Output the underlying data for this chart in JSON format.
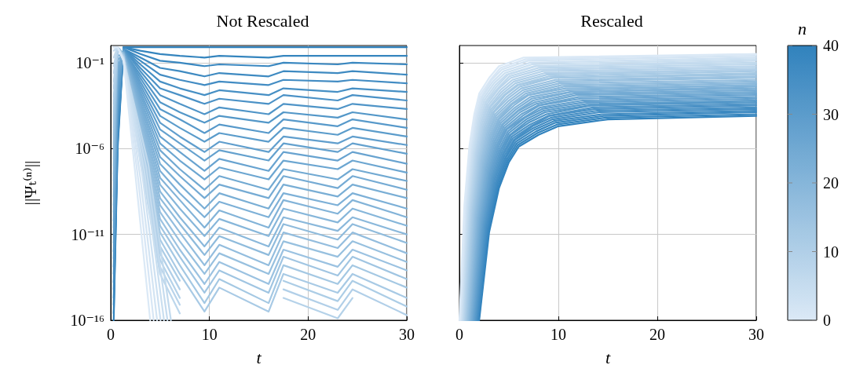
{
  "chart_data": [
    {
      "type": "line",
      "title": "Not Rescaled",
      "xlabel": "t",
      "ylabel": "||Ψₜ⁽ⁿ⁾||",
      "log": true,
      "grid": true,
      "marker": "none",
      "xlim": [
        0,
        30
      ],
      "xticks": [
        0,
        10,
        20,
        30
      ],
      "ylim": [
        1e-16,
        1
      ],
      "yticks": [
        {
          "value": 1e-16,
          "label": "10⁻¹⁶"
        },
        {
          "value": 1e-11,
          "label": "10⁻¹¹"
        },
        {
          "value": 1e-06,
          "label": "10⁻⁶"
        },
        {
          "value": 0.1,
          "label": "10⁻¹"
        }
      ],
      "x": [
        0.3,
        0.7,
        1.3,
        3,
        5,
        7,
        9.5,
        11,
        16,
        17.5,
        23,
        24.5,
        30
      ],
      "series": [
        {
          "color": "#dbe9f6",
          "x": [
            0.3,
            0.7,
            1.3,
            2.6,
            4
          ],
          "values": [
            0.8,
            0.8,
            0.13,
            8e-09,
            1e-16
          ]
        },
        {
          "color": "#d7e6f5",
          "x": [
            0.3,
            0.7,
            1.3,
            2.8,
            4.35
          ],
          "values": [
            0.8,
            0.8,
            0.13,
            1.3e-08,
            1e-16
          ]
        },
        {
          "color": "#d3e4f3",
          "x": [
            0.3,
            0.7,
            1.3,
            3,
            4.7
          ],
          "values": [
            0.8,
            0.8,
            0.13,
            2e-08,
            1e-16
          ]
        },
        {
          "color": "#cee1f2",
          "x": [
            0.3,
            0.7,
            1.3,
            3.2,
            5.05
          ],
          "values": [
            0.8,
            0.8,
            0.16,
            3.2e-08,
            1e-16
          ]
        },
        {
          "color": "#cadff0",
          "x": [
            0.3,
            0.7,
            1.3,
            3.4,
            5.4
          ],
          "values": [
            0.8,
            0.8,
            0.16,
            5e-08,
            1e-16
          ]
        },
        {
          "color": "#c6dcef",
          "x": [
            0.3,
            0.7,
            1.3,
            3.6,
            5.75
          ],
          "values": [
            0.5,
            0.8,
            0.16,
            8e-08,
            1e-16
          ]
        },
        {
          "color": "#c2daed",
          "x": [
            0.3,
            0.7,
            1.3,
            3.8,
            6.1
          ],
          "values": [
            0.2,
            0.8,
            0.16,
            1.3e-07,
            1e-16
          ]
        },
        {
          "color": "#bdd7ec",
          "values": [
            0.063,
            0.8,
            0.16,
            2e-07,
            5e-14,
            2.5e-16,
            null,
            null,
            null,
            null,
            null,
            null,
            null
          ]
        },
        {
          "color": "#b9d4eb",
          "values": [
            0.025,
            0.8,
            0.2,
            3.2e-07,
            1.3e-13,
            8e-16,
            null,
            null,
            null,
            null,
            null,
            null,
            null
          ]
        },
        {
          "color": "#b5d2e9",
          "values": [
            0.008,
            0.8,
            0.2,
            5e-07,
            3.2e-13,
            2e-15,
            null,
            null,
            null,
            2e-15,
            1.3e-16,
            2e-15,
            null
          ]
        },
        {
          "color": "#b1cfe8",
          "values": [
            0.0032,
            0.8,
            0.2,
            8e-07,
            8e-13,
            6.3e-15,
            null,
            null,
            null,
            6.3e-15,
            4e-16,
            6.3e-15,
            2e-16
          ]
        },
        {
          "color": "#accde6",
          "values": [
            0.001,
            0.8,
            0.2,
            1.3e-06,
            2e-12,
            2e-14,
            null,
            null,
            null,
            2e-14,
            1.3e-15,
            2e-14,
            6.3e-16
          ]
        },
        {
          "color": "#a8cae5",
          "values": [
            0.0004,
            0.8,
            0.2,
            2e-06,
            5e-12,
            5e-14,
            3.2e-16,
            8e-15,
            3.2e-16,
            5e-14,
            4e-15,
            5e-14,
            2e-15
          ]
        },
        {
          "color": "#a4c8e3",
          "values": [
            0.00013,
            0.8,
            0.25,
            3.2e-06,
            1.3e-11,
            1.6e-13,
            1e-15,
            2.5e-14,
            1e-15,
            1.6e-13,
            1.3e-14,
            1.6e-13,
            8e-15
          ]
        },
        {
          "color": "#a0c5e2",
          "values": [
            5e-05,
            0.8,
            0.25,
            5e-06,
            3.2e-11,
            5e-13,
            4e-15,
            8e-14,
            4e-15,
            5e-13,
            4e-14,
            5e-13,
            2.5e-14
          ]
        },
        {
          "color": "#9bc2e1",
          "values": [
            1.6e-05,
            0.8,
            0.25,
            8e-06,
            8e-11,
            1.3e-12,
            1.3e-14,
            2.5e-13,
            1.3e-14,
            1.3e-12,
            1.3e-13,
            1.3e-12,
            8e-14
          ]
        },
        {
          "color": "#97c0df",
          "values": [
            6.3e-06,
            0.8,
            0.25,
            1.3e-05,
            2e-10,
            4e-12,
            5e-14,
            8e-13,
            5e-14,
            4e-12,
            5e-13,
            4e-12,
            2.5e-13
          ]
        },
        {
          "color": "#93bdde",
          "values": [
            2e-06,
            0.8,
            0.25,
            2e-05,
            5e-10,
            1.3e-11,
            1.6e-13,
            2.5e-12,
            1.6e-13,
            1.3e-11,
            1.6e-12,
            1.3e-11,
            8e-13
          ]
        },
        {
          "color": "#8fbbdc",
          "values": [
            8e-07,
            0.8,
            0.32,
            3.2e-05,
            1.3e-09,
            4e-11,
            6.3e-13,
            8e-12,
            6.3e-13,
            4e-11,
            5e-12,
            4e-11,
            3.2e-12
          ]
        },
        {
          "color": "#8ab8db",
          "values": [
            2.5e-07,
            0.8,
            0.32,
            5e-05,
            3.2e-09,
            1e-10,
            2e-12,
            2.5e-11,
            2e-12,
            1e-10,
            1.6e-11,
            1e-10,
            1e-11
          ]
        },
        {
          "color": "#86b6da",
          "values": [
            1e-07,
            0.8,
            0.32,
            8e-05,
            8e-09,
            3.2e-10,
            8e-12,
            8e-11,
            8e-12,
            3.2e-10,
            5e-11,
            3.2e-10,
            3.2e-11
          ]
        },
        {
          "color": "#82b3d8",
          "values": [
            3.2e-08,
            0.5,
            0.32,
            0.00013,
            2e-08,
            1e-09,
            2.5e-11,
            2.5e-10,
            2.5e-11,
            1e-09,
            1.6e-10,
            1e-09,
            1e-10
          ]
        },
        {
          "color": "#7db0d7",
          "values": [
            1.3e-08,
            0.25,
            0.32,
            0.0002,
            5e-08,
            2.5e-09,
            1e-10,
            8e-10,
            1e-10,
            2.5e-09,
            5e-10,
            2.5e-09,
            3.2e-10
          ]
        },
        {
          "color": "#79aed5",
          "values": [
            4e-09,
            0.13,
            0.4,
            0.00032,
            1.3e-07,
            8e-09,
            3.2e-10,
            2.5e-09,
            3.2e-10,
            8e-09,
            1.6e-09,
            8e-09,
            1.3e-09
          ]
        },
        {
          "color": "#75abd4",
          "values": [
            1.6e-09,
            0.063,
            0.4,
            0.0005,
            3.2e-07,
            2.5e-08,
            1.3e-09,
            8e-09,
            1.3e-09,
            2.5e-08,
            5e-09,
            2.5e-08,
            4e-09
          ]
        },
        {
          "color": "#71a9d2",
          "values": [
            5e-10,
            0.032,
            0.4,
            0.0008,
            8e-07,
            6.3e-08,
            4e-09,
            2.5e-08,
            4e-09,
            6.3e-08,
            1.6e-08,
            6.3e-08,
            1.3e-08
          ]
        },
        {
          "color": "#6ca6d1",
          "values": [
            2e-10,
            0.016,
            0.4,
            0.0013,
            2e-06,
            2e-07,
            1.6e-08,
            8e-08,
            1.6e-08,
            2e-07,
            6.3e-08,
            2e-07,
            4e-08
          ]
        },
        {
          "color": "#68a3d0",
          "values": [
            6.3e-11,
            0.008,
            0.4,
            0.002,
            5e-06,
            6.3e-07,
            5e-08,
            2.5e-07,
            5e-08,
            6.3e-07,
            2e-07,
            6.3e-07,
            1.3e-07
          ]
        },
        {
          "color": "#64a1ce",
          "values": [
            2.5e-11,
            0.004,
            0.5,
            0.0032,
            1.3e-05,
            2e-06,
            2e-07,
            8e-07,
            2e-07,
            2e-06,
            6.3e-07,
            2e-06,
            5e-07
          ]
        },
        {
          "color": "#609ecd",
          "values": [
            8e-12,
            0.002,
            0.5,
            0.005,
            3.2e-05,
            5e-06,
            6.3e-07,
            2.5e-06,
            6.3e-07,
            5e-06,
            2e-06,
            5e-06,
            1.6e-06
          ]
        },
        {
          "color": "#5b9ccb",
          "values": [
            3.2e-12,
            0.001,
            0.5,
            0.008,
            8e-05,
            1.6e-05,
            2.5e-06,
            8e-06,
            2.5e-06,
            1.6e-05,
            6.3e-06,
            1.6e-05,
            5e-06
          ]
        },
        {
          "color": "#5799ca",
          "values": [
            1e-12,
            0.0005,
            0.5,
            0.013,
            0.0002,
            5e-05,
            8e-06,
            2.5e-05,
            8e-06,
            5e-05,
            2e-05,
            5e-05,
            1.6e-05
          ]
        },
        {
          "color": "#5397c8",
          "values": [
            4e-13,
            0.00025,
            0.5,
            0.02,
            0.0005,
            0.00013,
            3.2e-05,
            8e-05,
            3.2e-05,
            0.00013,
            6.3e-05,
            0.00013,
            5e-05
          ]
        },
        {
          "color": "#4f94c7",
          "values": [
            1.3e-13,
            0.00013,
            0.63,
            0.032,
            0.0013,
            0.0004,
            0.0001,
            0.00025,
            0.0001,
            0.0004,
            0.0002,
            0.0004,
            0.0002
          ]
        },
        {
          "color": "#4a91c6",
          "values": [
            5e-14,
            6.3e-05,
            0.63,
            0.05,
            0.0032,
            0.0013,
            0.0004,
            0.0008,
            0.0004,
            0.0013,
            0.00063,
            0.0013,
            0.00063
          ]
        },
        {
          "color": "#468fc4",
          "values": [
            1.6e-14,
            3.2e-05,
            0.63,
            0.08,
            0.008,
            0.0032,
            0.0013,
            0.0025,
            0.0013,
            0.0032,
            0.002,
            0.0032,
            0.002
          ]
        },
        {
          "color": "#428cc3",
          "values": [
            6.3e-15,
            1.6e-05,
            0.63,
            0.13,
            0.02,
            0.01,
            0.005,
            0.008,
            0.005,
            0.01,
            0.008,
            0.01,
            0.0063
          ]
        },
        {
          "color": "#3e8ac1",
          "values": [
            2e-15,
            8e-06,
            0.63,
            0.2,
            0.05,
            0.032,
            0.016,
            0.025,
            0.016,
            0.032,
            0.025,
            0.032,
            0.02
          ]
        },
        {
          "color": "#3987c0",
          "values": [
            8e-16,
            4e-06,
            0.8,
            0.32,
            0.13,
            0.1,
            0.063,
            0.08,
            0.063,
            0.1,
            0.08,
            0.1,
            0.08
          ]
        },
        {
          "color": "#3585be",
          "values": [
            2.5e-16,
            2e-06,
            0.8,
            0.5,
            0.32,
            0.25,
            0.2,
            0.25,
            0.2,
            0.25,
            0.25,
            0.25,
            0.25
          ]
        },
        {
          "color": "#3182bd",
          "values": [
            1e-16,
            1e-06,
            0.8,
            0.8,
            0.8,
            0.8,
            0.8,
            0.8,
            0.8,
            0.8,
            0.8,
            0.8,
            0.8
          ]
        }
      ]
    },
    {
      "type": "line",
      "title": "Rescaled",
      "xlabel": "t",
      "log": true,
      "grid": true,
      "marker": "none",
      "tick_labels": "x",
      "xlim": [
        0,
        30
      ],
      "xticks": [
        0,
        10,
        20,
        30
      ],
      "ylim": [
        1e-16,
        1
      ],
      "yticks": [
        {
          "value": 1e-16,
          "label": null
        },
        {
          "value": 1e-11,
          "label": null
        },
        {
          "value": 1e-06,
          "label": null
        },
        {
          "value": 0.1,
          "label": null
        }
      ],
      "clabel": "n",
      "clim": [
        0,
        40
      ],
      "cticks": [
        0,
        10,
        20,
        30,
        40
      ],
      "series": [
        {
          "color": "#dbe9f6",
          "x": [
            0,
            0.5,
            1,
            1.5,
            2,
            3,
            4,
            6.5,
            30
          ],
          "values": [
            1e-16,
            5e-10,
            1.3e-06,
            0.0001,
            0.0016,
            0.013,
            0.063,
            0.2,
            0.32
          ]
        },
        {
          "color": "#d7e6f5",
          "x": [
            0.05,
            0.56,
            1.08,
            1.59,
            2.1,
            3.13,
            4.15,
            6.71,
            30
          ],
          "values": [
            1e-16,
            5e-10,
            1e-06,
            0.0001,
            0.0013,
            0.01,
            0.05,
            0.16,
            0.32
          ]
        },
        {
          "color": "#d3e4f3",
          "x": [
            0.1,
            0.63,
            1.15,
            1.68,
            2.2,
            3.25,
            4.3,
            6.93,
            30
          ],
          "values": [
            1e-16,
            4e-10,
            1e-06,
            8e-05,
            0.001,
            0.01,
            0.04,
            0.13,
            0.25
          ]
        },
        {
          "color": "#cee1f2",
          "x": [
            0.15,
            0.69,
            1.23,
            1.76,
            2.3,
            3.38,
            4.45,
            7.14,
            30
          ],
          "values": [
            1e-16,
            4e-10,
            8e-07,
            6.3e-05,
            0.001,
            0.008,
            0.032,
            0.1,
            0.2
          ]
        },
        {
          "color": "#cadff0",
          "x": [
            0.2,
            0.75,
            1.3,
            1.85,
            2.4,
            3.5,
            4.6,
            7.35,
            30
          ],
          "values": [
            1e-16,
            3.2e-10,
            6.3e-07,
            6.3e-05,
            0.0008,
            0.0063,
            0.025,
            0.08,
            0.16
          ]
        },
        {
          "color": "#c6dcef",
          "x": [
            0.25,
            0.81,
            1.38,
            1.94,
            2.5,
            3.63,
            4.75,
            7.56,
            30
          ],
          "values": [
            1e-16,
            3.2e-10,
            6.3e-07,
            5e-05,
            0.00063,
            0.005,
            0.02,
            0.063,
            0.13
          ]
        },
        {
          "color": "#c2daed",
          "x": [
            0.3,
            0.88,
            1.45,
            2.03,
            2.6,
            3.75,
            4.9,
            7.78,
            30
          ],
          "values": [
            1e-16,
            3.2e-10,
            5e-07,
            4e-05,
            0.0005,
            0.004,
            0.02,
            0.063,
            0.1
          ]
        },
        {
          "color": "#bdd7ec",
          "x": [
            0.35,
            0.94,
            1.53,
            2.11,
            2.7,
            3.88,
            5.05,
            7.99,
            30
          ],
          "values": [
            1e-16,
            2.5e-10,
            5e-07,
            4e-05,
            0.0005,
            0.0032,
            0.016,
            0.05,
            0.08
          ]
        },
        {
          "color": "#b9d4eb",
          "x": [
            0.4,
            1,
            1.6,
            2.2,
            2.8,
            4,
            5.2,
            8.2,
            30
          ],
          "values": [
            1e-16,
            2.5e-10,
            4e-07,
            3.2e-05,
            0.0004,
            0.0032,
            0.013,
            0.04,
            0.063
          ]
        },
        {
          "color": "#b5d2e9",
          "x": [
            0.45,
            1.06,
            1.68,
            2.29,
            2.9,
            4.13,
            5.35,
            8.41,
            30
          ],
          "values": [
            1e-16,
            2e-10,
            4e-07,
            2.5e-05,
            0.00032,
            0.0025,
            0.01,
            0.032,
            0.05
          ]
        },
        {
          "color": "#b1cfe8",
          "x": [
            0.5,
            1.13,
            1.75,
            2.38,
            3,
            4.25,
            5.5,
            8.63,
            30
          ],
          "values": [
            1e-16,
            2e-10,
            3.2e-07,
            2e-05,
            0.00025,
            0.002,
            0.008,
            0.025,
            0.04
          ]
        },
        {
          "color": "#accde6",
          "x": [
            0.55,
            1.19,
            1.83,
            2.46,
            3.1,
            4.38,
            5.65,
            8.84,
            30
          ],
          "values": [
            1e-16,
            2e-10,
            2.5e-07,
            2e-05,
            0.00025,
            0.0016,
            0.0063,
            0.02,
            0.04
          ]
        },
        {
          "color": "#a8cae5",
          "x": [
            0.6,
            1.25,
            1.9,
            2.55,
            3.2,
            4.5,
            5.8,
            9.05,
            30
          ],
          "values": [
            1e-16,
            1.6e-10,
            2.5e-07,
            1.6e-05,
            0.0002,
            0.0013,
            0.005,
            0.016,
            0.032
          ]
        },
        {
          "color": "#a4c8e3",
          "x": [
            0.65,
            1.31,
            1.98,
            2.64,
            3.3,
            4.63,
            5.95,
            9.26,
            30
          ],
          "values": [
            1e-16,
            1.6e-10,
            2e-07,
            1.3e-05,
            0.00016,
            0.0013,
            0.005,
            0.013,
            0.025
          ]
        },
        {
          "color": "#a0c5e2",
          "x": [
            0.7,
            1.38,
            2.05,
            2.73,
            3.4,
            4.75,
            6.1,
            9.48,
            30
          ],
          "values": [
            1e-16,
            1.3e-10,
            2e-07,
            1.3e-05,
            0.00013,
            0.001,
            0.004,
            0.013,
            0.02
          ]
        },
        {
          "color": "#9bc2e1",
          "x": [
            0.75,
            1.44,
            2.13,
            2.81,
            3.5,
            4.88,
            6.25,
            9.69,
            30
          ],
          "values": [
            1e-16,
            1.3e-10,
            1.6e-07,
            1e-05,
            0.00013,
            0.0008,
            0.0032,
            0.01,
            0.016
          ]
        },
        {
          "color": "#97c0df",
          "x": [
            0.8,
            1.5,
            2.2,
            2.9,
            3.6,
            5,
            6.4,
            9.9,
            30
          ],
          "values": [
            1e-16,
            1.3e-10,
            1.3e-07,
            8e-06,
            0.0001,
            0.00063,
            0.0025,
            0.008,
            0.013
          ]
        },
        {
          "color": "#93bdde",
          "x": [
            0.85,
            1.56,
            2.28,
            2.99,
            3.7,
            5.13,
            6.55,
            10.11,
            30
          ],
          "values": [
            1e-16,
            1e-10,
            1.3e-07,
            8e-06,
            8e-05,
            0.0005,
            0.002,
            0.0063,
            0.01
          ]
        },
        {
          "color": "#8fbbdc",
          "x": [
            0.9,
            1.63,
            2.35,
            3.08,
            3.8,
            5.25,
            6.7,
            10.33,
            30
          ],
          "values": [
            1e-16,
            1e-10,
            1e-07,
            6.3e-06,
            6.3e-05,
            0.0004,
            0.0016,
            0.005,
            0.008
          ]
        },
        {
          "color": "#8ab8db",
          "x": [
            0.95,
            1.69,
            2.43,
            3.16,
            3.9,
            5.38,
            6.85,
            10.54,
            30
          ],
          "values": [
            1e-16,
            1e-10,
            1e-07,
            5e-06,
            5e-05,
            0.0004,
            0.0013,
            0.004,
            0.0063
          ]
        },
        {
          "color": "#86b6da",
          "x": [
            1,
            1.75,
            2.5,
            3.25,
            4,
            5.5,
            7,
            10.75,
            30
          ],
          "values": [
            1e-16,
            8e-11,
            8e-08,
            4e-06,
            5e-05,
            0.00032,
            0.0013,
            0.0032,
            0.005
          ]
        },
        {
          "color": "#82b3d8",
          "x": [
            1.05,
            1.81,
            2.58,
            3.34,
            4.1,
            5.63,
            7.15,
            10.96,
            30
          ],
          "values": [
            1e-16,
            8e-11,
            8e-08,
            4e-06,
            4e-05,
            0.00025,
            0.001,
            0.0025,
            0.005
          ]
        },
        {
          "color": "#7db0d7",
          "x": [
            1.1,
            1.88,
            2.65,
            3.43,
            4.2,
            5.75,
            7.3,
            11.18,
            30
          ],
          "values": [
            1e-16,
            6.3e-11,
            6.3e-08,
            3.2e-06,
            3.2e-05,
            0.0002,
            0.0008,
            0.002,
            0.004
          ]
        },
        {
          "color": "#79aed5",
          "x": [
            1.15,
            1.94,
            2.73,
            3.51,
            4.3,
            5.88,
            7.45,
            11.39,
            30
          ],
          "values": [
            1e-16,
            6.3e-11,
            5e-08,
            2.5e-06,
            2.5e-05,
            0.00016,
            0.00063,
            0.002,
            0.0032
          ]
        },
        {
          "color": "#75abd4",
          "x": [
            1.2,
            2,
            2.8,
            3.6,
            4.4,
            6,
            7.6,
            11.6,
            30
          ],
          "values": [
            1e-16,
            6.3e-11,
            5e-08,
            2.5e-06,
            2.5e-05,
            0.00016,
            0.0005,
            0.0016,
            0.0025
          ]
        },
        {
          "color": "#71a9d2",
          "x": [
            1.25,
            2.06,
            2.88,
            3.69,
            4.5,
            6.13,
            7.75,
            11.81,
            30
          ],
          "values": [
            1e-16,
            5e-11,
            4e-08,
            2e-06,
            2e-05,
            0.00013,
            0.0004,
            0.0013,
            0.002
          ]
        },
        {
          "color": "#6ca6d1",
          "x": [
            1.3,
            2.13,
            2.95,
            3.78,
            4.6,
            6.25,
            7.9,
            12.03,
            30
          ],
          "values": [
            1e-16,
            5e-11,
            4e-08,
            1.6e-06,
            1.6e-05,
            0.0001,
            0.00032,
            0.001,
            0.0016
          ]
        },
        {
          "color": "#68a3d0",
          "x": [
            1.35,
            2.19,
            3.03,
            3.86,
            4.7,
            6.38,
            8.05,
            12.24,
            30
          ],
          "values": [
            1e-16,
            4e-11,
            3.2e-08,
            1.6e-06,
            1.3e-05,
            8e-05,
            0.00032,
            0.0008,
            0.0013
          ]
        },
        {
          "color": "#64a1ce",
          "x": [
            1.4,
            2.25,
            3.1,
            3.95,
            4.8,
            6.5,
            8.2,
            12.45,
            30
          ],
          "values": [
            1e-16,
            4e-11,
            2.5e-08,
            1.3e-06,
            1.3e-05,
            6.3e-05,
            0.00025,
            0.00063,
            0.001
          ]
        },
        {
          "color": "#609ecd",
          "x": [
            1.45,
            2.31,
            3.18,
            4.04,
            4.9,
            6.63,
            8.35,
            12.66,
            30
          ],
          "values": [
            1e-16,
            4e-11,
            2.5e-08,
            1e-06,
            1e-05,
            6.3e-05,
            0.0002,
            0.0005,
            0.0008
          ]
        },
        {
          "color": "#5b9ccb",
          "x": [
            1.5,
            2.38,
            3.25,
            4.13,
            5,
            6.75,
            8.5,
            12.88,
            30
          ],
          "values": [
            1e-16,
            3.2e-11,
            2e-08,
            8e-07,
            8e-06,
            5e-05,
            0.00016,
            0.0004,
            0.00063
          ]
        },
        {
          "color": "#5799ca",
          "x": [
            1.55,
            2.44,
            3.33,
            4.21,
            5.1,
            6.88,
            8.65,
            13.09,
            30
          ],
          "values": [
            1e-16,
            3.2e-11,
            2e-08,
            8e-07,
            6.3e-06,
            4e-05,
            0.00013,
            0.00032,
            0.00063
          ]
        },
        {
          "color": "#5397c8",
          "x": [
            1.6,
            2.5,
            3.4,
            4.3,
            5.2,
            7,
            8.8,
            13.3,
            30
          ],
          "values": [
            1e-16,
            3.2e-11,
            1.6e-08,
            6.3e-07,
            6.3e-06,
            3.2e-05,
            0.0001,
            0.00032,
            0.0005
          ]
        },
        {
          "color": "#4f94c7",
          "x": [
            1.65,
            2.56,
            3.48,
            4.39,
            5.3,
            7.13,
            8.95,
            13.51,
            30
          ],
          "values": [
            1e-16,
            2.5e-11,
            1.6e-08,
            5e-07,
            5e-06,
            2.5e-05,
            8e-05,
            0.00025,
            0.0004
          ]
        },
        {
          "color": "#4a91c6",
          "x": [
            1.7,
            2.63,
            3.55,
            4.48,
            5.4,
            7.25,
            9.1,
            13.73,
            30
          ],
          "values": [
            1e-16,
            2.5e-11,
            1.3e-08,
            5e-07,
            4e-06,
            2e-05,
            8e-05,
            0.0002,
            0.00032
          ]
        },
        {
          "color": "#468fc4",
          "x": [
            1.75,
            2.69,
            3.63,
            4.56,
            5.5,
            7.38,
            9.25,
            13.94,
            30
          ],
          "values": [
            1e-16,
            2e-11,
            1e-08,
            4e-07,
            3.2e-06,
            2e-05,
            6.3e-05,
            0.00016,
            0.00025
          ]
        },
        {
          "color": "#428cc3",
          "x": [
            1.8,
            2.75,
            3.7,
            4.65,
            5.6,
            7.5,
            9.4,
            14.15,
            30
          ],
          "values": [
            1e-16,
            2e-11,
            1e-08,
            3.2e-07,
            3.2e-06,
            1.6e-05,
            5e-05,
            0.00013,
            0.0002
          ]
        },
        {
          "color": "#3e8ac1",
          "x": [
            1.85,
            2.81,
            3.78,
            4.74,
            5.7,
            7.63,
            9.55,
            14.36,
            30
          ],
          "values": [
            1e-16,
            2e-11,
            8e-09,
            3.2e-07,
            2.5e-06,
            1.3e-05,
            4e-05,
            0.0001,
            0.00016
          ]
        },
        {
          "color": "#3987c0",
          "x": [
            1.9,
            2.88,
            3.85,
            4.83,
            5.8,
            7.75,
            9.7,
            14.58,
            30
          ],
          "values": [
            1e-16,
            1.6e-11,
            8e-09,
            2.5e-07,
            2e-06,
            1e-05,
            3.2e-05,
            8e-05,
            0.00013
          ]
        },
        {
          "color": "#3585be",
          "x": [
            1.95,
            2.94,
            3.93,
            4.91,
            5.9,
            7.88,
            9.85,
            14.79,
            30
          ],
          "values": [
            1e-16,
            1.6e-11,
            6.3e-09,
            2e-07,
            1.6e-06,
            8e-06,
            2.5e-05,
            6.3e-05,
            0.0001
          ]
        },
        {
          "color": "#3182bd",
          "x": [
            2,
            3,
            4,
            5,
            6,
            8,
            10,
            15,
            30
          ],
          "values": [
            1e-16,
            1.3e-11,
            5e-09,
            1.6e-07,
            1.3e-06,
            6.3e-06,
            2e-05,
            5e-05,
            8e-05
          ]
        }
      ]
    }
  ]
}
